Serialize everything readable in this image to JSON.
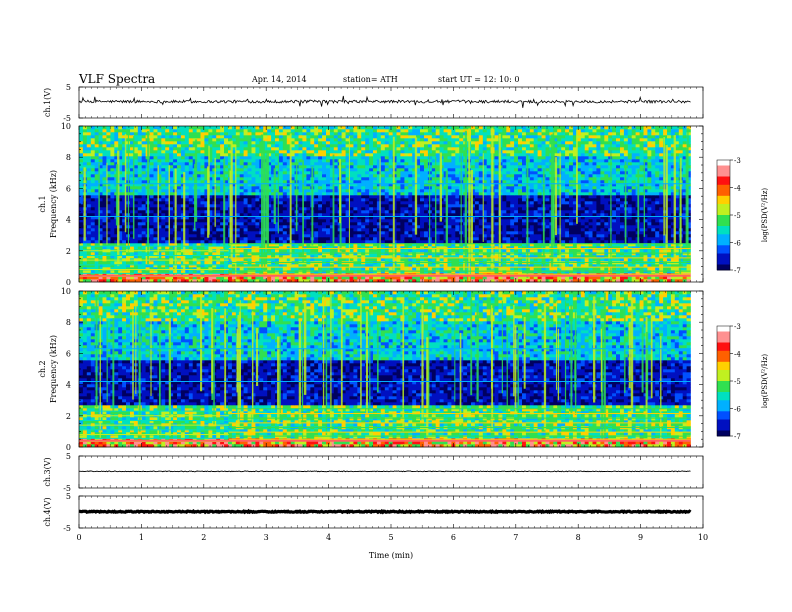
{
  "header": {
    "title": "VLF  Spectra",
    "date": "Apr. 14, 2014",
    "station": "station= ATH",
    "start_ut": "start  UT  =   12: 10: 0"
  },
  "colorbar": {
    "label": "log(PSD(V²/Hz)",
    "ticks": [
      "-3",
      "-4",
      "-5",
      "-6",
      "-7"
    ],
    "range": [
      -7,
      -3
    ],
    "colors": [
      "#000060",
      "#0010c0",
      "#0050ff",
      "#00b0ff",
      "#00e0c0",
      "#30e050",
      "#c0f020",
      "#ffd000",
      "#ff6000",
      "#ff1010",
      "#ff9090",
      "#ffffff"
    ]
  },
  "chart_data": [
    {
      "type": "line",
      "panel": "ch1-waveform",
      "ylabel": "ch.1(V)",
      "ylim": [
        -5,
        5
      ],
      "ytick_labels": [
        "5",
        "-5"
      ],
      "xlim": [
        0,
        10
      ],
      "baseline": 0,
      "stroke": "#000000"
    },
    {
      "type": "heatmap",
      "panel": "ch1-spectrogram",
      "ylabel_top": "ch.1",
      "ylabel": "Frequency  (kHz)",
      "ylim": [
        0,
        10
      ],
      "ytick_labels": [
        "10",
        "8",
        "6",
        "4",
        "2",
        "0"
      ],
      "xlim": [
        0,
        10
      ],
      "data_extent_min": 9.8,
      "bands_khz": [
        {
          "from": 0,
          "to": 0.6,
          "level": "high"
        },
        {
          "from": 0.6,
          "to": 2.5,
          "level": "mid-high"
        },
        {
          "from": 2.5,
          "to": 5.5,
          "level": "low"
        },
        {
          "from": 5.5,
          "to": 8.0,
          "level": "mid"
        },
        {
          "from": 8.0,
          "to": 10,
          "level": "mid-high"
        }
      ],
      "step_time_min": 2.4
    },
    {
      "type": "heatmap",
      "panel": "ch2-spectrogram",
      "ylabel_top": "ch.2",
      "ylabel": "Frequency  (kHz)",
      "ylim": [
        0,
        10
      ],
      "ytick_labels": [
        "10",
        "8",
        "6",
        "4",
        "2",
        "0"
      ],
      "xlim": [
        0,
        10
      ],
      "data_extent_min": 9.8,
      "bands_khz": [
        {
          "from": 0,
          "to": 0.6,
          "level": "high"
        },
        {
          "from": 0.6,
          "to": 2.7,
          "level": "mid-high"
        },
        {
          "from": 2.7,
          "to": 5.5,
          "level": "low"
        },
        {
          "from": 5.5,
          "to": 8.0,
          "level": "mid"
        },
        {
          "from": 8.0,
          "to": 10,
          "level": "mid-high"
        }
      ],
      "step_time_min": 2.4
    },
    {
      "type": "line",
      "panel": "ch3-waveform",
      "ylabel": "ch.3(V)",
      "ylim": [
        -5,
        5
      ],
      "ytick_labels": [
        "5",
        "-5"
      ],
      "xlim": [
        0,
        10
      ],
      "baseline": 0,
      "stroke": "#000000"
    },
    {
      "type": "line",
      "panel": "ch4-waveform",
      "ylabel": "ch.4(V)",
      "ylim": [
        -5,
        5
      ],
      "ytick_labels": [
        "5",
        "-5"
      ],
      "xlim": [
        0,
        10
      ],
      "xlabel": "Time  (min)",
      "xtick_labels": [
        "0",
        "1",
        "2",
        "3",
        "4",
        "5",
        "6",
        "7",
        "8",
        "9",
        "10"
      ],
      "baseline": 0,
      "stroke": "#000000"
    }
  ]
}
